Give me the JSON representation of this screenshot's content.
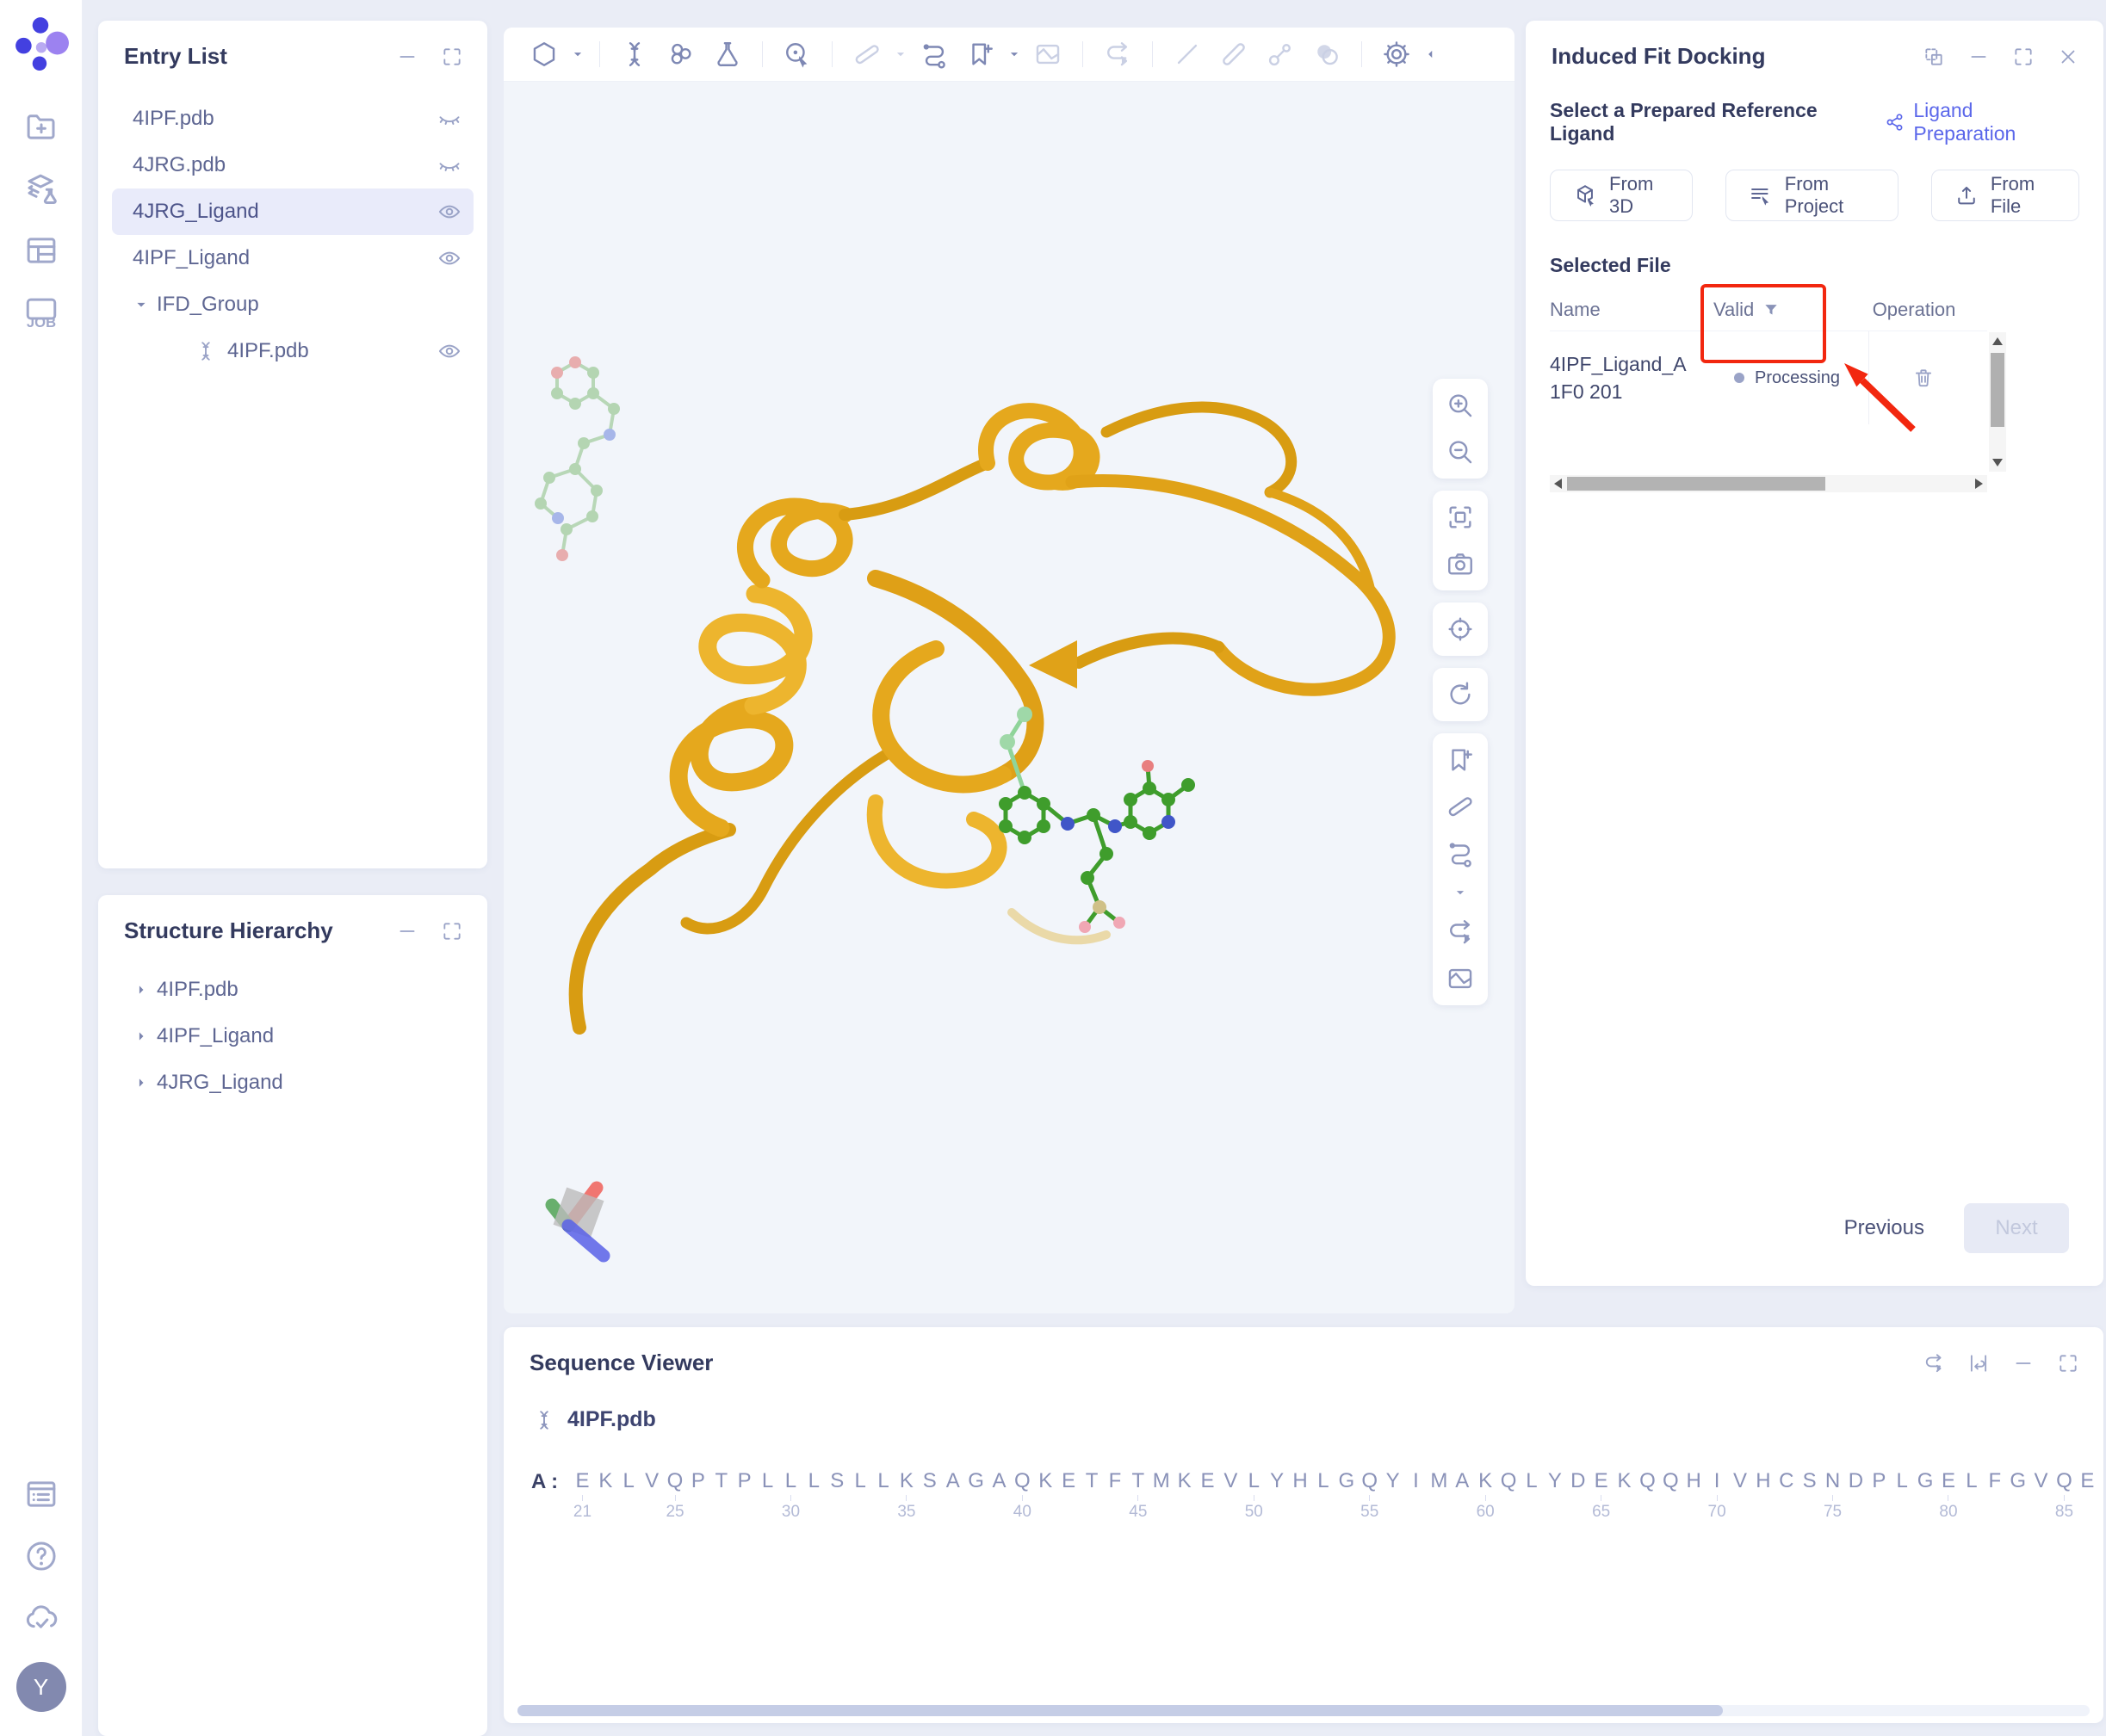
{
  "sidebar": {
    "avatar": "Y",
    "job_label": "JOB",
    "top_icons": [
      "folder-plus-icon",
      "layers-flask-icon",
      "panel-layout-icon",
      "job-icon"
    ],
    "bottom_icons": [
      "list-log-icon",
      "help-icon",
      "cloud-check-icon"
    ]
  },
  "entry_list": {
    "title": "Entry List",
    "window_icons": [
      "minimize-icon",
      "expand-icon"
    ],
    "items": [
      {
        "label": "4IPF.pdb",
        "eye": "closed"
      },
      {
        "label": "4JRG.pdb",
        "eye": "closed"
      },
      {
        "label": "4JRG_Ligand",
        "eye": "open",
        "selected": true
      },
      {
        "label": "4IPF_Ligand",
        "eye": "open"
      },
      {
        "label": "IFD_Group",
        "caret": "down"
      },
      {
        "label": "4IPF.pdb",
        "eye": "open",
        "child": true,
        "molecule": true
      }
    ]
  },
  "structure_hierarchy": {
    "title": "Structure Hierarchy",
    "window_icons": [
      "minimize-icon",
      "expand-icon"
    ],
    "items": [
      {
        "label": "4IPF.pdb"
      },
      {
        "label": "4IPF_Ligand"
      },
      {
        "label": "4JRG_Ligand"
      }
    ]
  },
  "viewer": {
    "toolbar": [
      {
        "icon": "hexagon-icon"
      },
      {
        "icon": "caret-down-icon",
        "small": true
      },
      {
        "divider": true
      },
      {
        "icon": "dna-helix-icon"
      },
      {
        "icon": "rings-icon"
      },
      {
        "icon": "flask-icon"
      },
      {
        "divider": true
      },
      {
        "icon": "target-select-icon"
      },
      {
        "divider": true
      },
      {
        "icon": "measure-icon",
        "faded": true
      },
      {
        "icon": "caret-down-icon",
        "small": true,
        "faded": true
      },
      {
        "icon": "route-icon"
      },
      {
        "icon": "bookmark-add-icon"
      },
      {
        "icon": "caret-down-icon",
        "small": true
      },
      {
        "icon": "map-icon",
        "faded": true
      },
      {
        "divider": true
      },
      {
        "icon": "shuffle-arrows-icon",
        "faded": true
      },
      {
        "divider": true
      },
      {
        "icon": "line-icon",
        "faded": true
      },
      {
        "icon": "pencil-icon",
        "faded": true
      },
      {
        "icon": "ball-stick-icon",
        "faded": true
      },
      {
        "icon": "spheres-icon",
        "faded": true
      },
      {
        "divider": true
      },
      {
        "icon": "gear-icon"
      },
      {
        "icon": "caret-left-icon",
        "small": true,
        "push": true
      }
    ],
    "side_toolbar_groups": [
      [
        {
          "icon": "zoom-in-icon"
        },
        {
          "icon": "zoom-out-icon"
        }
      ],
      [
        {
          "icon": "fit-screen-icon"
        },
        {
          "icon": "camera-icon"
        }
      ],
      [
        {
          "icon": "locate-icon"
        }
      ],
      [
        {
          "icon": "refresh-icon"
        }
      ],
      [
        {
          "icon": "bookmark-add-icon"
        },
        {
          "icon": "measure-icon"
        },
        {
          "icon": "route-icon"
        },
        {
          "icon": "caret-down-icon",
          "small": true
        },
        {
          "icon": "shuffle-arrows-icon"
        },
        {
          "icon": "map-icon"
        }
      ]
    ]
  },
  "docking_panel": {
    "title": "Induced Fit Docking",
    "window_icons": [
      "pin-copy-icon",
      "minimize-icon",
      "expand-icon",
      "close-icon"
    ],
    "section_label": "Select a Prepared Reference Ligand",
    "link_label": "Ligand Preparation",
    "sources": [
      {
        "label": "From 3D",
        "icon": "cube-3d-icon"
      },
      {
        "label": "From Project",
        "icon": "project-list-icon"
      },
      {
        "label": "From File",
        "icon": "upload-icon"
      }
    ],
    "selected_file_label": "Selected File",
    "table": {
      "columns": [
        "Name",
        "Valid",
        "Operation"
      ],
      "rows": [
        {
          "name": "4IPF_Ligand_A 1F0 201",
          "valid": "Processing"
        }
      ]
    },
    "previous_label": "Previous",
    "next_label": "Next"
  },
  "sequence_viewer": {
    "title": "Sequence Viewer",
    "window_icons": [
      "shuffle-arrows-icon",
      "wrap-icon",
      "minimize-icon",
      "expand-icon"
    ],
    "entry_label": "4IPF.pdb",
    "chain_label": "A :",
    "residues": "EKLVQPTPLLLSLLKSAGAQKETFTMKEVLYHLGQYIMAKQLYDEKQQHIVHCSNDPLGELFGVQE",
    "ruler": [
      {
        "i": 0,
        "label": "21"
      },
      {
        "i": 4,
        "label": "25"
      },
      {
        "i": 9,
        "label": "30"
      },
      {
        "i": 14,
        "label": "35"
      },
      {
        "i": 19,
        "label": "40"
      },
      {
        "i": 24,
        "label": "45"
      },
      {
        "i": 29,
        "label": "50"
      },
      {
        "i": 34,
        "label": "55"
      },
      {
        "i": 39,
        "label": "60"
      },
      {
        "i": 44,
        "label": "65"
      },
      {
        "i": 49,
        "label": "70"
      },
      {
        "i": 54,
        "label": "75"
      },
      {
        "i": 59,
        "label": "80"
      },
      {
        "i": 64,
        "label": "85"
      }
    ]
  },
  "colors": {
    "accent": "#5b67ea",
    "annotation_red": "#f2270f",
    "protein_gold": "#e5a81d",
    "ligand_green": "#3f9d2c",
    "status_dot": "#9aa3c7"
  }
}
